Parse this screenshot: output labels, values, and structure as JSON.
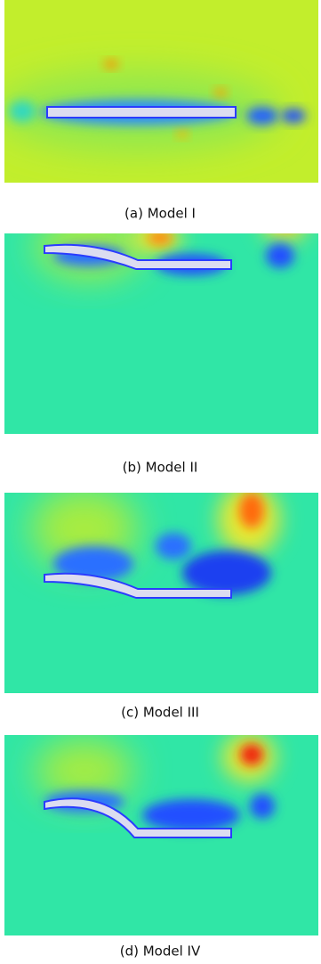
{
  "panels": [
    {
      "caption": "(a) Model I"
    },
    {
      "caption": "(b) Model II"
    },
    {
      "caption": "(c) Model III"
    },
    {
      "caption": "(d) Model IV"
    }
  ]
}
